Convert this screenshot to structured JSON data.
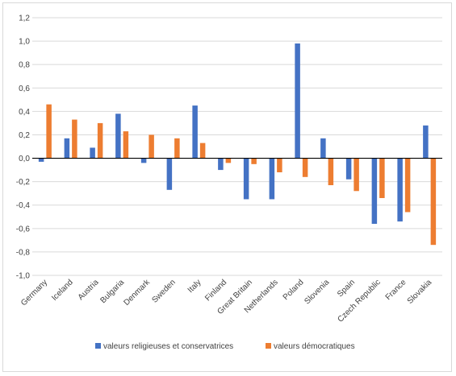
{
  "chart_data": {
    "type": "bar",
    "categories": [
      "Germany",
      "Iceland",
      "Austria",
      "Bulgaria",
      "Denmark",
      "Sweden",
      "Italy",
      "Finland",
      "Great Britain",
      "Netherlands",
      "Poland",
      "Slovenia",
      "Spain",
      "Czech Republic",
      "France",
      "Slovakia"
    ],
    "series": [
      {
        "name": "valeurs religieuses et conservatrices",
        "color": "#4472c4",
        "values": [
          -0.03,
          0.17,
          0.09,
          0.38,
          -0.04,
          -0.27,
          0.45,
          -0.1,
          -0.35,
          -0.35,
          0.98,
          0.17,
          -0.18,
          -0.56,
          -0.54,
          0.28
        ]
      },
      {
        "name": "valeurs démocratiques",
        "color": "#ed7d31",
        "values": [
          0.46,
          0.33,
          0.3,
          0.23,
          0.2,
          0.17,
          0.13,
          -0.04,
          -0.05,
          -0.12,
          -0.16,
          -0.23,
          -0.28,
          -0.34,
          -0.46,
          -0.74
        ]
      }
    ],
    "ylim": [
      -1.0,
      1.2
    ],
    "yticks": [
      "1,2",
      "1,0",
      "0,8",
      "0,6",
      "0,4",
      "0,2",
      "0,0",
      "-0,2",
      "-0,4",
      "-0,6",
      "-0,8",
      "-1,0"
    ],
    "ytick_values": [
      1.2,
      1.0,
      0.8,
      0.6,
      0.4,
      0.2,
      0.0,
      -0.2,
      -0.4,
      -0.6,
      -0.8,
      -1.0
    ],
    "grid": true,
    "legend_position": "bottom"
  }
}
